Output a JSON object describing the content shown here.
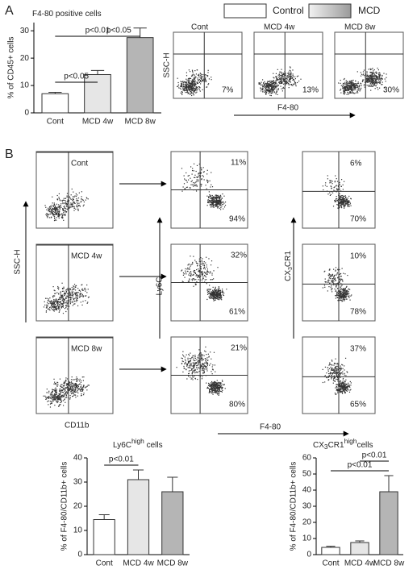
{
  "panels": [
    "A",
    "B"
  ],
  "legend": [
    "Control",
    "MCD"
  ],
  "chart_data": [
    {
      "type": "bar",
      "title": {
        "main": "F4-80 positive cells"
      },
      "y_label": "% of CD45+ cells",
      "categories": [
        "Cont",
        "MCD 4w",
        "MCD 8w"
      ],
      "values": [
        7,
        14,
        27.5
      ],
      "errors": [
        0.5,
        1.5,
        3.5
      ],
      "colors": [
        "#ffffff",
        "#e6e6e6",
        "#b5b5b5"
      ],
      "ylim": [
        0,
        33
      ],
      "yticks": [
        0,
        10,
        20,
        30
      ],
      "annotations": [
        "p<0.01",
        "p<0.05",
        "p<0.05"
      ]
    },
    {
      "type": "bar",
      "title": {
        "main": "Ly6C",
        "sup": "high",
        "tail": " cells"
      },
      "y_label": "% of F4-80/CD11b+ cells",
      "categories": [
        "Cont",
        "MCD 4w",
        "MCD 8w"
      ],
      "values": [
        14.5,
        31,
        26
      ],
      "errors": [
        2,
        4,
        6
      ],
      "colors": [
        "#ffffff",
        "#e6e6e6",
        "#b5b5b5"
      ],
      "ylim": [
        0,
        40
      ],
      "yticks": [
        0,
        10,
        20,
        30,
        40
      ],
      "annotations": [
        "p<0.01"
      ]
    },
    {
      "type": "bar",
      "title": {
        "main": "CX",
        "sub": "3",
        "rest": "CR1",
        "sup": "high",
        "tail": "cells"
      },
      "y_label": "% of F4-80/CD11b+ cells",
      "categories": [
        "Cont",
        "MCD 4w",
        "MCD 8w"
      ],
      "values": [
        4.5,
        7.5,
        39
      ],
      "errors": [
        0.7,
        1,
        10
      ],
      "colors": [
        "#ffffff",
        "#e6e6e6",
        "#b5b5b5"
      ],
      "ylim": [
        0,
        60
      ],
      "yticks": [
        0,
        10,
        20,
        30,
        40,
        50,
        60
      ],
      "annotations": [
        "p<0.01",
        "p<0.01"
      ]
    }
  ],
  "flow_a": {
    "labels": [
      "Cont",
      "MCD 4w",
      "MCD 8w"
    ],
    "percents": [
      "7%",
      "13%",
      "30%"
    ],
    "y_label": "SSC-H",
    "x_label": "F4-80"
  },
  "flow_b": {
    "labels": [
      "Cont",
      "MCD 4w",
      "MCD 8w"
    ],
    "y_label": "SSC-H",
    "x_label_left": "CD11b",
    "ly6c_upper": [
      "11%",
      "32%",
      "21%"
    ],
    "ly6c_lower": [
      "94%",
      "61%",
      "80%"
    ],
    "cx_upper": [
      "6%",
      "10%",
      "37%"
    ],
    "cx_lower": [
      "70%",
      "78%",
      "65%"
    ],
    "ly6c_label": "Ly6C",
    "cx_label": {
      "main": "CX",
      "sub": "3",
      "rest": "CR1"
    },
    "x_label": "F4-80"
  }
}
